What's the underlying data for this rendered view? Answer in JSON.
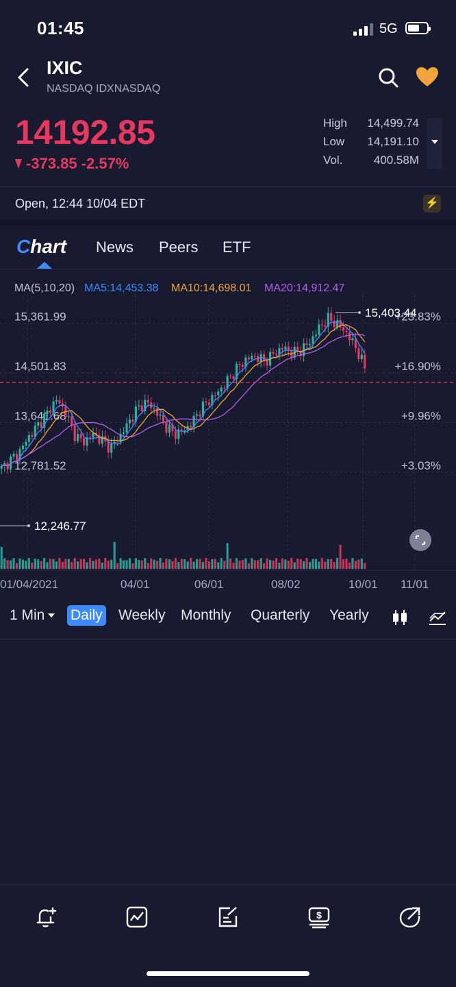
{
  "status_bar": {
    "time": "01:45",
    "network": "5G",
    "signal_bars": 3
  },
  "header": {
    "symbol": "IXIC",
    "exchange": "NASDAQ IDXNASDAQ",
    "icons": [
      "back-icon",
      "search-icon",
      "heart-icon"
    ],
    "favorite_color": "#f0a53b"
  },
  "quote": {
    "price": "14192.85",
    "change": "-373.85 -2.57%",
    "color": "#e8385f",
    "stats": {
      "high_label": "High",
      "high": "14,499.74",
      "low_label": "Low",
      "low": "14,191.10",
      "vol_label": "Vol.",
      "vol": "400.58M"
    }
  },
  "market_status": "Open,   12:44 10/04 EDT",
  "tabs": {
    "chart": "hart",
    "chart_logo_letter": "C",
    "news": "News",
    "peers": "Peers",
    "etf": "ETF"
  },
  "ma_legend": {
    "ma": "MA(5,10,20)",
    "ma5": "MA5:14,453.38",
    "ma10": "MA10:14,698.01",
    "ma20": "MA20:14,912.47",
    "colors": {
      "ma5": "#3d8bff",
      "ma10": "#f0a53b",
      "ma20": "#b45ee8"
    }
  },
  "chart_data": {
    "type": "candlestick",
    "y_labels_left": [
      "15,361.99",
      "14,501.83",
      "13,641.68",
      "12,781.52"
    ],
    "y_labels_right": [
      "+23.83%",
      "+16.90%",
      "+9.96%",
      "+3.03%"
    ],
    "x_labels": [
      "01/04/2021",
      "04/01",
      "06/01",
      "08/02",
      "10/01",
      "11/01"
    ],
    "high_marker": "15,403.44",
    "low_marker": "12,246.77",
    "current_line": 14192.85,
    "ylim": [
      12150,
      15500
    ],
    "close_series": [
      12700,
      12850,
      13000,
      13250,
      13450,
      13650,
      13900,
      13700,
      13300,
      13150,
      13300,
      13200,
      13050,
      13250,
      13500,
      13750,
      13850,
      13700,
      13450,
      13300,
      13350,
      13500,
      13750,
      13900,
      14050,
      14250,
      14450,
      14600,
      14650,
      14550,
      14700,
      14800,
      14700,
      14750,
      14900,
      15150,
      15300,
      15200,
      15050,
      14800,
      14450
    ],
    "grid": true,
    "up_color": "#2ab3a3",
    "down_color": "#e8385f"
  },
  "periods": {
    "interval": "1 Min",
    "daily": "Daily",
    "weekly": "Weekly",
    "monthly": "Monthly",
    "quarterly": "Quarterly",
    "yearly": "Yearly",
    "active": "Daily",
    "icons": [
      "candle-type-icon",
      "indicator-icon"
    ]
  },
  "toolbar": {
    "icons": [
      "add-alert-icon",
      "chart-trend-icon",
      "edit-note-icon",
      "trade-dollar-icon",
      "share-icon"
    ]
  }
}
